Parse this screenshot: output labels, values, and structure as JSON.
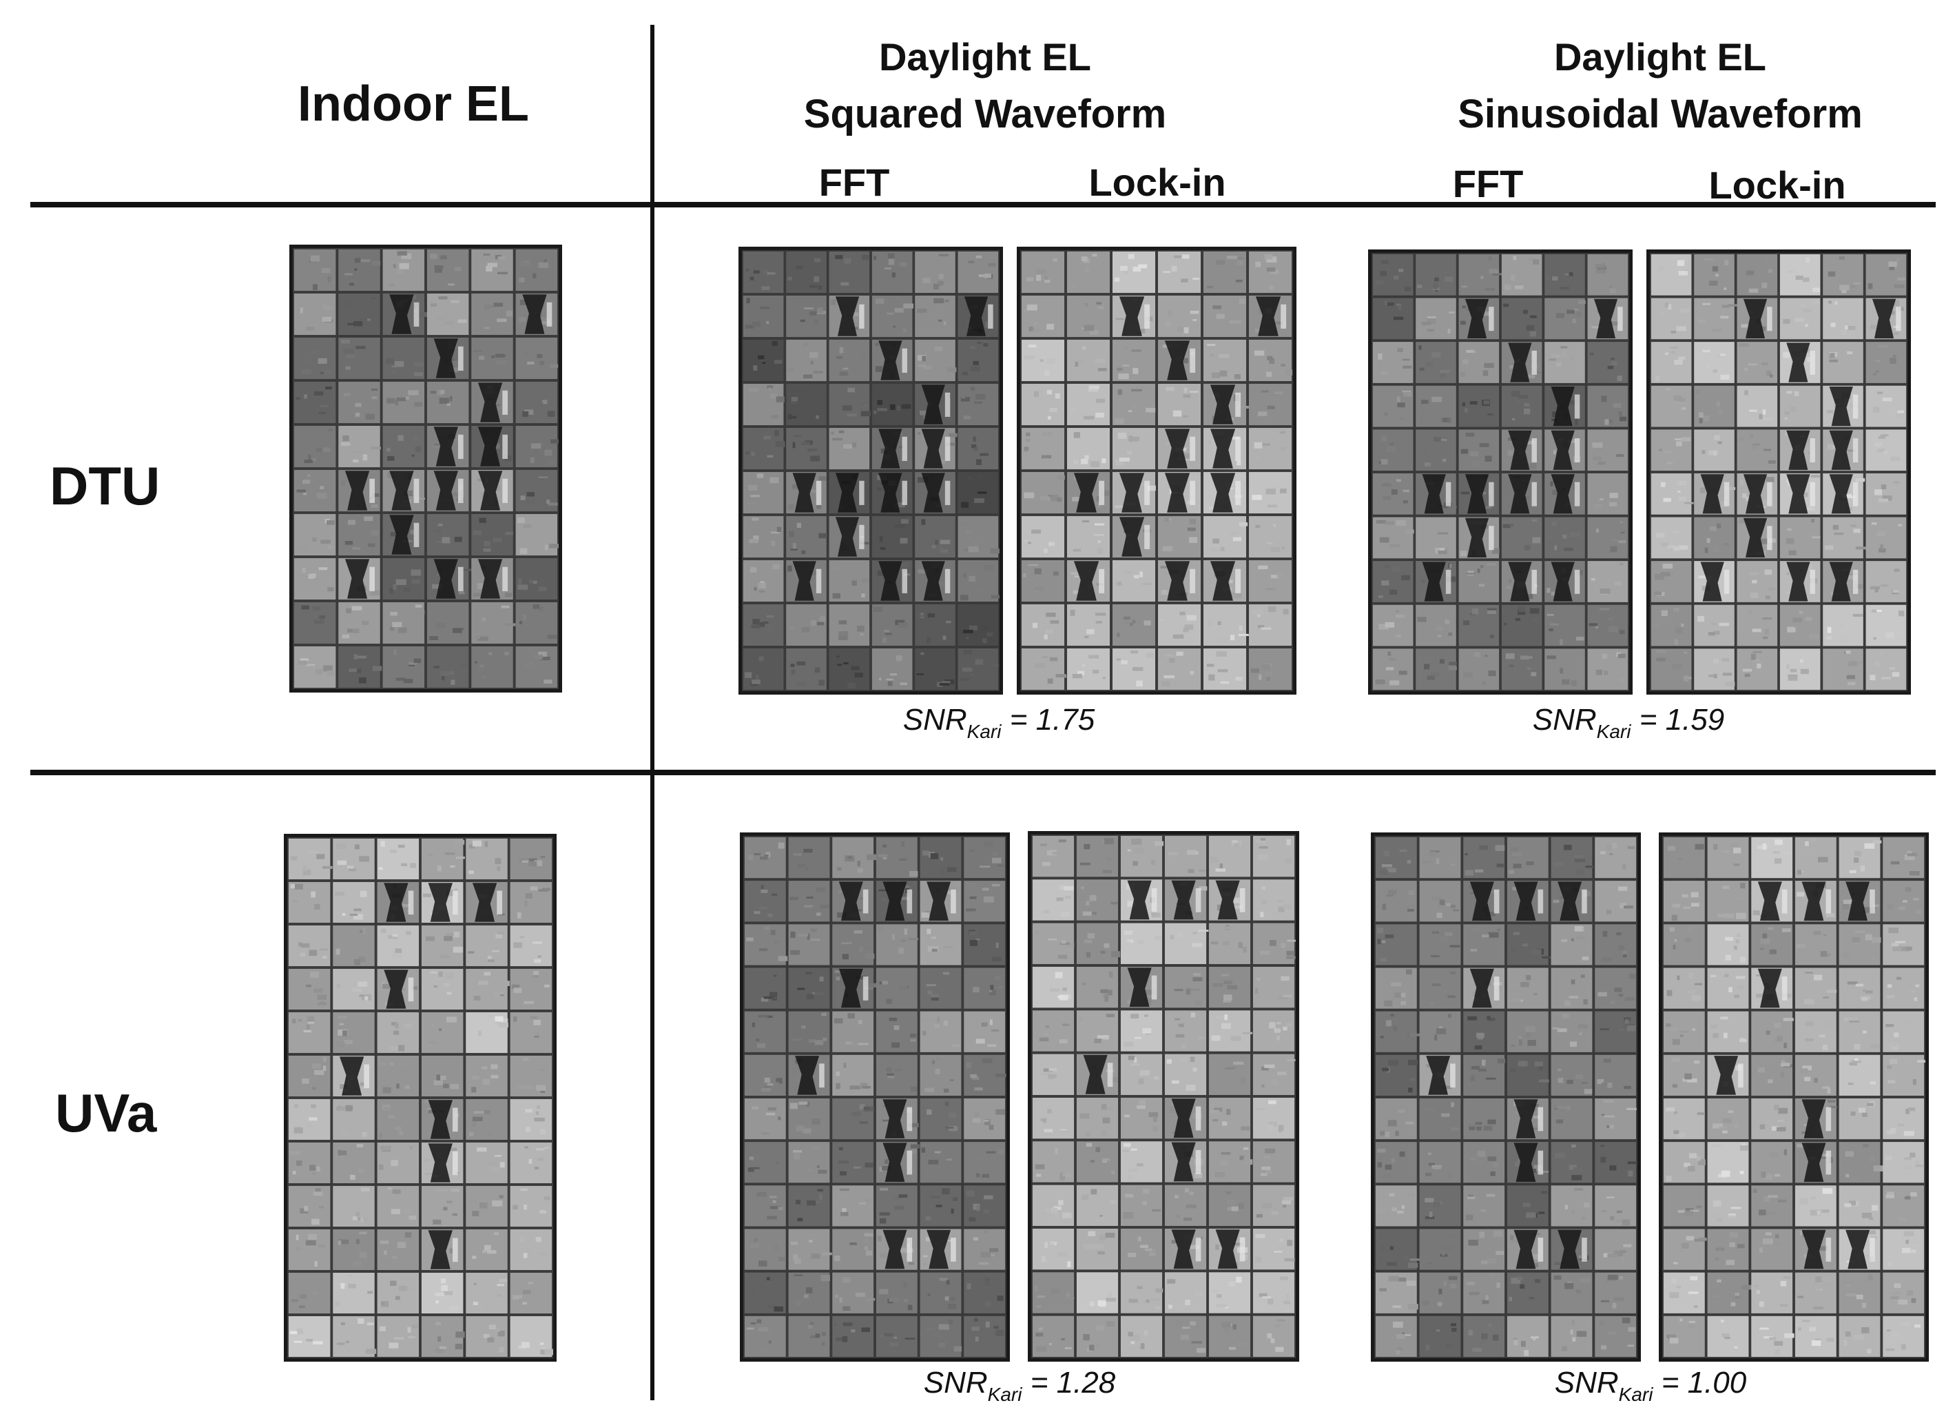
{
  "columns": {
    "indoor": "Indoor EL",
    "squared_title_1": "Daylight EL",
    "squared_title_2": "Squared Waveform",
    "sinusoidal_title_1": "Daylight EL",
    "sinusoidal_title_2": "Sinusoidal Waveform",
    "fft_1": "FFT",
    "lockin_1": "Lock-in",
    "fft_2": "FFT",
    "lockin_2": "Lock-in"
  },
  "rows": [
    {
      "label": "DTU"
    },
    {
      "label": "UVa"
    }
  ],
  "snr": {
    "prefix": "SNR",
    "subscript": "Kari",
    "dtu_squared": "= 1.75",
    "dtu_sinusoidal": "= 1.59",
    "uva_squared": "= 1.28",
    "uva_sinusoidal": "= 1.00"
  },
  "panels": {
    "dtu_indoor": "EL image of a 6x10-cell PV module with cracked and dark inactive cell regions",
    "dtu_sq_fft": "Daylight EL image, squared waveform, FFT processing",
    "dtu_sq_lockin": "Daylight EL image, squared waveform, lock-in processing",
    "dtu_sin_fft": "Daylight EL image, sinusoidal waveform, FFT processing",
    "dtu_sin_lockin": "Daylight EL image, sinusoidal waveform, lock-in processing",
    "uva_indoor": "EL image of a 6x12-cell PV module with a few dark cracked cells",
    "uva_sq_fft": "Daylight EL image, squared waveform, FFT processing",
    "uva_sq_lockin": "Daylight EL image, squared waveform, lock-in processing",
    "uva_sin_fft": "Daylight EL image, sinusoidal waveform, FFT processing",
    "uva_sin_lockin": "Daylight EL image, sinusoidal waveform, lock-in processing"
  }
}
